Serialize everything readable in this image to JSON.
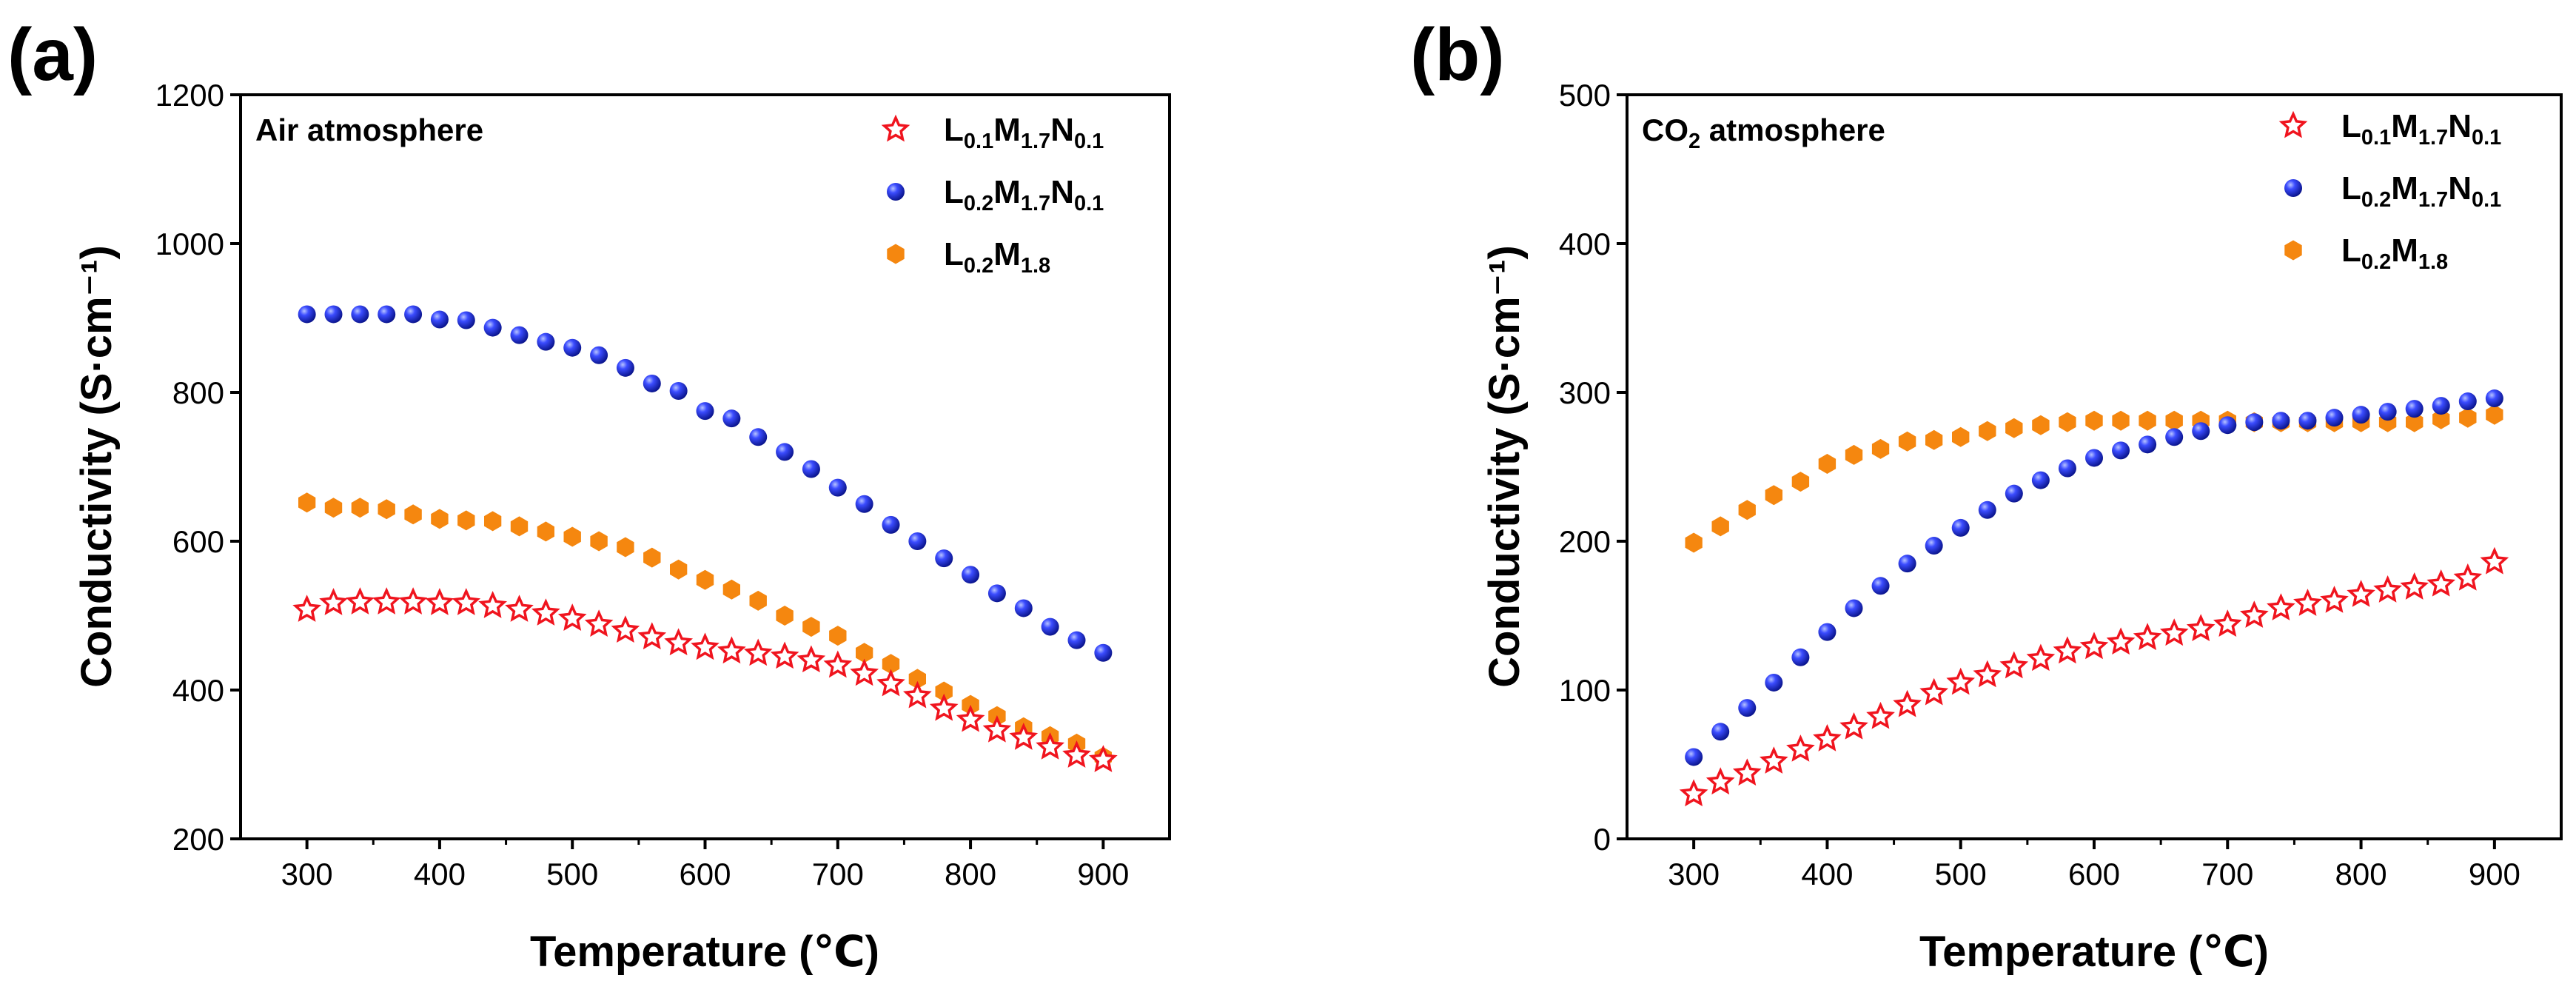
{
  "chart_data": [
    {
      "type": "scatter",
      "panel_label": "(a)",
      "title": "Air atmosphere",
      "title_parts": {
        "main": "Air atmosphere"
      },
      "xlabel": "Temperature (℃)",
      "ylabel": "Conductivity (S·cm⁻¹)",
      "xlim": [
        250,
        950
      ],
      "ylim": [
        200,
        1200
      ],
      "xticks": [
        300,
        400,
        500,
        600,
        700,
        800,
        900
      ],
      "yticks": [
        200,
        400,
        600,
        800,
        1000,
        1200
      ],
      "legend_position": "top-right",
      "x": [
        300,
        320,
        340,
        360,
        380,
        400,
        420,
        440,
        460,
        480,
        500,
        520,
        540,
        560,
        580,
        600,
        620,
        640,
        660,
        680,
        700,
        720,
        740,
        760,
        780,
        800,
        820,
        840,
        860,
        880,
        900
      ],
      "series": [
        {
          "name": "L0.1M1.7N0.1",
          "legend_parts": [
            {
              "t": "L"
            },
            {
              "s": "0.1"
            },
            {
              "t": "M"
            },
            {
              "s": "1.7"
            },
            {
              "t": "N"
            },
            {
              "s": "0.1"
            }
          ],
          "marker": "star",
          "color": "#f0141e",
          "values": [
            508,
            517,
            518,
            518,
            518,
            517,
            517,
            513,
            508,
            503,
            496,
            488,
            480,
            471,
            463,
            457,
            452,
            449,
            445,
            440,
            433,
            422,
            408,
            392,
            375,
            360,
            346,
            336,
            323,
            312,
            306
          ]
        },
        {
          "name": "L0.2M1.7N0.1",
          "legend_parts": [
            {
              "t": "L"
            },
            {
              "s": "0.2"
            },
            {
              "t": "M"
            },
            {
              "s": "1.7"
            },
            {
              "t": "N"
            },
            {
              "s": "0.1"
            }
          ],
          "marker": "sphere",
          "color": "#1a2cf0",
          "values": [
            905,
            905,
            905,
            905,
            905,
            898,
            897,
            887,
            877,
            868,
            860,
            850,
            833,
            812,
            802,
            775,
            765,
            740,
            720,
            697,
            672,
            650,
            622,
            600,
            577,
            555,
            530,
            510,
            485,
            467,
            450
          ]
        },
        {
          "name": "L0.2M1.8",
          "legend_parts": [
            {
              "t": "L"
            },
            {
              "s": "0.2"
            },
            {
              "t": "M"
            },
            {
              "s": "1.8"
            }
          ],
          "marker": "hexagon",
          "color": "#f5870f",
          "values": [
            652,
            645,
            645,
            643,
            636,
            630,
            628,
            627,
            620,
            613,
            606,
            600,
            592,
            578,
            562,
            548,
            535,
            520,
            500,
            485,
            473,
            450,
            435,
            415,
            398,
            380,
            365,
            350,
            338,
            328,
            310
          ]
        }
      ]
    },
    {
      "type": "scatter",
      "panel_label": "(b)",
      "title": "CO2 atmosphere",
      "title_parts": {
        "main": "CO",
        "sub": "2",
        "rest": " atmosphere"
      },
      "xlabel": "Temperature (℃)",
      "ylabel": "Conductivity (S·cm⁻¹)",
      "xlim": [
        250,
        950
      ],
      "ylim": [
        0,
        500
      ],
      "xticks": [
        300,
        400,
        500,
        600,
        700,
        800,
        900
      ],
      "yticks": [
        0,
        100,
        200,
        300,
        400,
        500
      ],
      "legend_position": "top-right",
      "x": [
        300,
        320,
        340,
        360,
        380,
        400,
        420,
        440,
        460,
        480,
        500,
        520,
        540,
        560,
        580,
        600,
        620,
        640,
        660,
        680,
        700,
        720,
        740,
        760,
        780,
        800,
        820,
        840,
        860,
        880,
        900
      ],
      "series": [
        {
          "name": "L0.1M1.7N0.1",
          "legend_parts": [
            {
              "t": "L"
            },
            {
              "s": "0.1"
            },
            {
              "t": "M"
            },
            {
              "s": "1.7"
            },
            {
              "t": "N"
            },
            {
              "s": "0.1"
            }
          ],
          "marker": "star",
          "color": "#f0141e",
          "values": [
            30,
            38,
            44,
            52,
            60,
            67,
            75,
            82,
            90,
            98,
            105,
            110,
            116,
            121,
            126,
            129,
            132,
            135,
            138,
            141,
            144,
            150,
            155,
            158,
            160,
            164,
            167,
            169,
            171,
            175,
            186
          ]
        },
        {
          "name": "L0.2M1.7N0.1",
          "legend_parts": [
            {
              "t": "L"
            },
            {
              "s": "0.2"
            },
            {
              "t": "M"
            },
            {
              "s": "1.7"
            },
            {
              "t": "N"
            },
            {
              "s": "0.1"
            }
          ],
          "marker": "sphere",
          "color": "#1a2cf0",
          "values": [
            55,
            72,
            88,
            105,
            122,
            139,
            155,
            170,
            185,
            197,
            209,
            221,
            232,
            241,
            249,
            256,
            261,
            265,
            270,
            274,
            278,
            280,
            281,
            281,
            283,
            285,
            287,
            289,
            291,
            294,
            296
          ]
        },
        {
          "name": "L0.2M1.8",
          "legend_parts": [
            {
              "t": "L"
            },
            {
              "s": "0.2"
            },
            {
              "t": "M"
            },
            {
              "s": "1.8"
            }
          ],
          "marker": "hexagon",
          "color": "#f5870f",
          "values": [
            199,
            210,
            221,
            231,
            240,
            252,
            258,
            262,
            267,
            268,
            270,
            274,
            276,
            278,
            280,
            281,
            281,
            281,
            281,
            281,
            281,
            280,
            280,
            280,
            280,
            280,
            280,
            280,
            282,
            283,
            285
          ]
        }
      ]
    }
  ]
}
